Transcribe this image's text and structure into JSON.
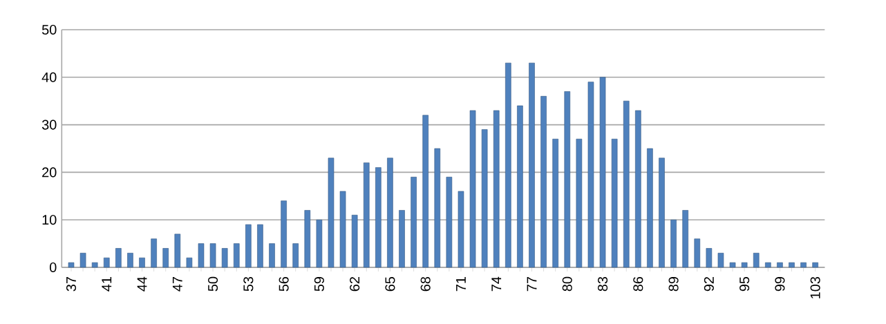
{
  "chart_data": {
    "type": "bar",
    "categories": [
      "37",
      null,
      null,
      "41",
      null,
      null,
      "44",
      null,
      null,
      "47",
      null,
      null,
      "50",
      null,
      null,
      "53",
      null,
      null,
      "56",
      null,
      null,
      "59",
      null,
      null,
      "62",
      null,
      null,
      "65",
      null,
      null,
      "68",
      null,
      null,
      "71",
      null,
      null,
      "74",
      null,
      null,
      "77",
      null,
      null,
      "80",
      null,
      null,
      "83",
      null,
      null,
      "86",
      null,
      null,
      "89",
      null,
      null,
      "92",
      null,
      null,
      "95",
      null,
      null,
      "99",
      null,
      null,
      "103"
    ],
    "values": [
      1,
      3,
      1,
      2,
      4,
      3,
      2,
      6,
      4,
      7,
      2,
      5,
      5,
      4,
      5,
      9,
      9,
      5,
      14,
      5,
      12,
      10,
      23,
      16,
      11,
      22,
      21,
      23,
      12,
      19,
      32,
      25,
      19,
      16,
      33,
      29,
      33,
      43,
      34,
      43,
      36,
      27,
      37,
      27,
      39,
      40,
      27,
      35,
      33,
      25,
      23,
      10,
      12,
      6,
      4,
      3,
      1,
      1,
      3,
      1,
      1,
      1,
      1,
      1
    ],
    "color": "#4f81bd",
    "ylim": [
      0,
      50
    ],
    "yticks": [
      0,
      10,
      20,
      30,
      40,
      50
    ],
    "grid": "y"
  }
}
